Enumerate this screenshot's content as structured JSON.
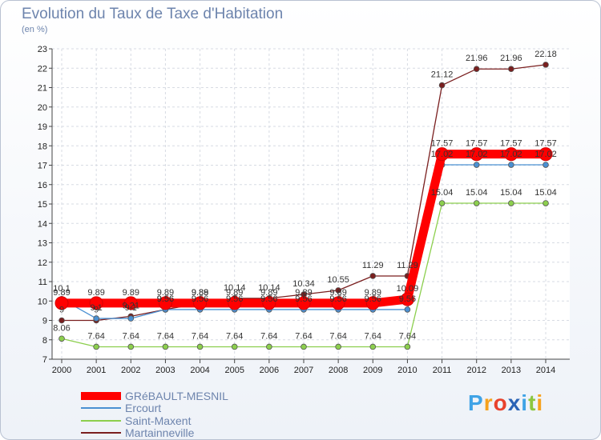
{
  "header": {
    "title": "Evolution du Taux de Taxe d'Habitation",
    "subtitle": "(en %)"
  },
  "brand": {
    "text": "Proxiti",
    "colors": [
      "#3fa3e6",
      "#f6a21e",
      "#e8422c",
      "#2b63b6",
      "#3fa3e6",
      "#8cc63f",
      "#f6a21e"
    ]
  },
  "chart_data": {
    "type": "line",
    "title": "Evolution du Taux de Taxe d'Habitation",
    "ylabel": "(en %)",
    "xlabel": "",
    "x": [
      2000,
      2001,
      2002,
      2003,
      2004,
      2005,
      2006,
      2007,
      2008,
      2009,
      2010,
      2011,
      2012,
      2013,
      2014
    ],
    "ylim": [
      7,
      23
    ],
    "yticks": [
      7,
      8,
      9,
      10,
      11,
      12,
      13,
      14,
      15,
      16,
      17,
      18,
      19,
      20,
      21,
      22,
      23
    ],
    "grid": true,
    "legend_position": "bottom-left",
    "series": [
      {
        "name": "GRéBAULT-MESNIL",
        "color": "#ff0000",
        "values": [
          9.89,
          9.89,
          9.89,
          9.89,
          9.89,
          9.89,
          9.89,
          9.89,
          9.89,
          9.89,
          10.09,
          17.57,
          17.57,
          17.57,
          17.57
        ],
        "labels": [
          "9.89",
          "9.89",
          "9.89",
          "9.89",
          "9.89",
          "9.89",
          "9.89",
          "9.89",
          "9.89",
          "9.89",
          "10.09",
          "17.57",
          "17.57",
          "17.57",
          "17.57"
        ]
      },
      {
        "name": "Ercourt",
        "color": "#4a90d2",
        "values": [
          10.1,
          9.1,
          9.1,
          9.56,
          9.56,
          9.56,
          9.56,
          9.56,
          9.56,
          9.56,
          9.56,
          17.02,
          17.02,
          17.02,
          17.02
        ],
        "labels": [
          "10.1",
          "9.1",
          "9.1",
          "9.56",
          "9.56",
          "9.56",
          "9.56",
          "9.56",
          "9.56",
          "9.56",
          "9.56",
          "17.02",
          "17.02",
          "17.02",
          "17.02"
        ]
      },
      {
        "name": "Saint-Maxent",
        "color": "#8ccf4d",
        "values": [
          8.06,
          7.64,
          7.64,
          7.64,
          7.64,
          7.64,
          7.64,
          7.64,
          7.64,
          7.64,
          7.64,
          15.04,
          15.04,
          15.04,
          15.04
        ],
        "labels": [
          "8.06",
          "7.64",
          "7.64",
          "7.64",
          "7.64",
          "7.64",
          "7.64",
          "7.64",
          "7.64",
          "7.64",
          "7.64",
          "15.04",
          "15.04",
          "15.04",
          "15.04"
        ]
      },
      {
        "name": "Martainneville",
        "color": "#7a1f1f",
        "values": [
          9,
          9,
          9.21,
          9.56,
          9.88,
          10.14,
          10.14,
          10.34,
          10.55,
          11.29,
          11.29,
          21.12,
          21.96,
          21.96,
          22.18
        ],
        "labels": [
          "9",
          "9",
          "9.21",
          "9.56",
          "9.88",
          "10.14",
          "10.14",
          "10.34",
          "10.55",
          "11.29",
          "11.29",
          "21.12",
          "21.96",
          "21.96",
          "22.18"
        ]
      }
    ]
  }
}
